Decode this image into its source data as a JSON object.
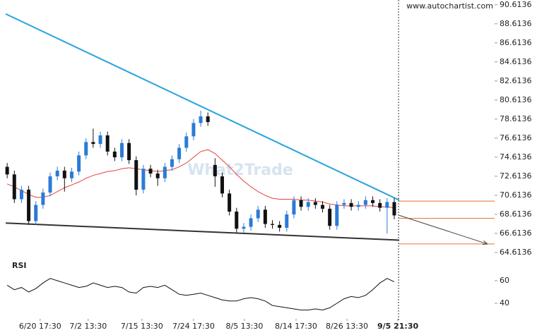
{
  "chart_data": {
    "type": "candlestick",
    "source": "www.autochartist.com",
    "watermark": "What2Trade",
    "indicator_label": "RSI",
    "up_color": "#2b7bd6",
    "down_color": "#111111",
    "ma_color": "#e8413a",
    "open": [
      73.6,
      72.8,
      70.2,
      71.2,
      67.9,
      69.6,
      70.9,
      72.6,
      73.2,
      72.4,
      73.1,
      74.8,
      76.2,
      76.0,
      76.9,
      75.2,
      74.6,
      76.1,
      74.3,
      71.2,
      73.4,
      72.9,
      72.4,
      73.6,
      74.4,
      75.6,
      76.8,
      78.2,
      78.9,
      73.8,
      72.6,
      70.8,
      68.9,
      67.1,
      67.3,
      68.2,
      69.1,
      67.6,
      67.5,
      67.2,
      68.6,
      70.1,
      69.4,
      69.9,
      69.6,
      69.2,
      67.4,
      69.6,
      69.8,
      69.4,
      69.6,
      70.1,
      69.8,
      69.3,
      69.9
    ],
    "high": [
      74.0,
      73.2,
      71.6,
      71.6,
      70.0,
      71.3,
      73.0,
      73.6,
      73.6,
      73.5,
      75.2,
      76.6,
      77.6,
      77.3,
      77.3,
      75.6,
      76.5,
      76.5,
      74.7,
      73.8,
      73.8,
      73.3,
      74.0,
      74.8,
      76.0,
      77.2,
      78.6,
      79.5,
      79.3,
      74.5,
      73.0,
      71.2,
      69.3,
      67.7,
      68.6,
      69.5,
      69.5,
      68.0,
      67.9,
      69.0,
      70.5,
      70.5,
      70.3,
      70.3,
      70.0,
      69.6,
      70.0,
      70.2,
      70.2,
      70.0,
      70.5,
      70.5,
      70.2,
      70.3,
      70.3
    ],
    "low": [
      72.4,
      69.8,
      69.8,
      67.5,
      67.5,
      69.2,
      70.5,
      72.2,
      71.0,
      72.0,
      72.7,
      74.4,
      75.6,
      75.6,
      74.8,
      74.2,
      74.2,
      73.9,
      70.6,
      70.8,
      72.5,
      71.6,
      72.0,
      73.2,
      74.0,
      75.2,
      76.4,
      77.8,
      77.9,
      71.5,
      70.4,
      68.5,
      66.7,
      66.7,
      66.9,
      67.8,
      67.2,
      67.1,
      66.8,
      66.8,
      68.2,
      69.0,
      69.0,
      69.2,
      68.8,
      67.0,
      67.0,
      69.2,
      69.0,
      69.0,
      69.2,
      69.4,
      68.9,
      66.6,
      68.1
    ],
    "close": [
      72.8,
      70.2,
      71.2,
      67.9,
      69.6,
      70.9,
      72.6,
      73.2,
      72.4,
      73.1,
      74.8,
      76.2,
      76.0,
      76.9,
      75.2,
      74.6,
      76.1,
      74.3,
      71.2,
      73.4,
      72.9,
      72.4,
      73.6,
      74.4,
      75.6,
      76.8,
      78.2,
      78.9,
      78.3,
      72.6,
      70.8,
      68.9,
      67.1,
      67.3,
      68.2,
      69.1,
      67.6,
      67.5,
      67.2,
      68.6,
      70.1,
      69.4,
      69.9,
      69.6,
      69.2,
      67.4,
      69.6,
      69.8,
      69.4,
      69.6,
      70.1,
      69.8,
      69.3,
      69.9,
      68.5
    ],
    "moving_average": [
      71.8,
      71.5,
      71.1,
      70.7,
      70.4,
      70.4,
      70.6,
      71.0,
      71.4,
      71.7,
      72.0,
      72.4,
      72.7,
      72.9,
      73.1,
      73.2,
      73.4,
      73.5,
      73.4,
      73.3,
      73.2,
      73.1,
      73.2,
      73.3,
      73.6,
      74.0,
      74.6,
      75.2,
      75.4,
      75.0,
      74.3,
      73.6,
      72.8,
      72.1,
      71.5,
      71.0,
      70.6,
      70.3,
      70.2,
      70.2,
      70.2,
      70.1,
      70.1,
      70.0,
      69.9,
      69.7,
      69.6,
      69.5,
      69.5,
      69.5,
      69.5,
      69.5,
      69.4,
      69.4,
      69.3
    ],
    "rsi": [
      56,
      52,
      54,
      50,
      53,
      58,
      62,
      60,
      58,
      56,
      54,
      55,
      58,
      56,
      54,
      55,
      54,
      50,
      49,
      54,
      55,
      54,
      56,
      52,
      48,
      47,
      48,
      49,
      47,
      45,
      43,
      42,
      42,
      44,
      45,
      44,
      42,
      38,
      37,
      36,
      35,
      34,
      34,
      35,
      34,
      36,
      40,
      44,
      46,
      45,
      47,
      52,
      58,
      62,
      59
    ],
    "trendlines": [
      {
        "color": "#29a3dd",
        "x": [
          -0.2,
          54.7
        ],
        "y": [
          89.65,
          70.1
        ]
      },
      {
        "color": "#333333",
        "x": [
          -0.2,
          54.7
        ],
        "y": [
          67.7,
          65.9
        ]
      }
    ],
    "projection": {
      "color": "#444444",
      "x": [
        54.7,
        67.0
      ],
      "y": [
        68.5,
        65.5
      ]
    },
    "levels": [
      70.0,
      68.2,
      65.5
    ],
    "level_color": "#e8742c",
    "current_x": 54.6,
    "xlim": [
      -1,
      68
    ],
    "ylim": [
      64.0136,
      91.1136
    ],
    "yticks": [
      90.6136,
      88.6136,
      86.6136,
      84.6136,
      82.6136,
      80.6136,
      78.6136,
      76.6136,
      74.6136,
      72.6136,
      70.6136,
      68.6136,
      66.6136,
      64.6136
    ],
    "y2lim": [
      28.75,
      74.375
    ],
    "y2ticks": [
      60,
      40
    ],
    "xticks": [
      {
        "value": 4.6,
        "label": "6/20 17:30"
      },
      {
        "value": 11.3,
        "label": "7/2 13:30"
      },
      {
        "value": 18.8,
        "label": "7/15 13:30"
      },
      {
        "value": 26.0,
        "label": "7/24 17:30"
      },
      {
        "value": 33.1,
        "label": "8/5 13:30"
      },
      {
        "value": 40.3,
        "label": "8/14 17:30"
      },
      {
        "value": 47.4,
        "label": "8/26 13:30"
      },
      {
        "value": 54.5,
        "label": "9/5 21:30"
      }
    ]
  }
}
